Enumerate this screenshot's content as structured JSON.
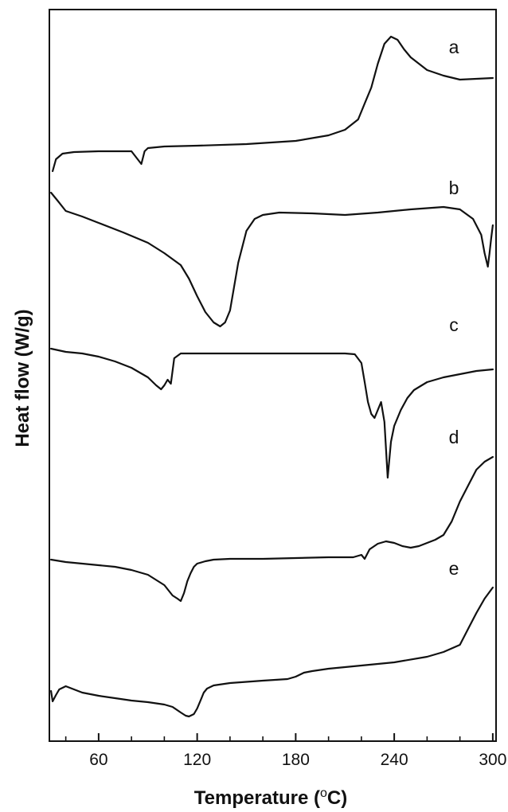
{
  "chart_data": {
    "type": "line",
    "title": "",
    "xlabel": "Temperature (",
    "xlabel_sup": "o",
    "xlabel_unit": "C)",
    "ylabel": "Heat flow (W/g)",
    "xlim": [
      30,
      302
    ],
    "x_ticks": [
      60,
      120,
      180,
      240,
      300
    ],
    "x_minor_ticks": [
      40,
      80,
      100,
      140,
      160,
      200,
      220,
      260,
      280
    ],
    "grid": false,
    "series": [
      {
        "name": "a",
        "x": [
          32,
          34,
          38,
          45,
          60,
          80,
          86,
          88,
          90,
          100,
          120,
          150,
          180,
          200,
          210,
          218,
          222,
          226,
          230,
          234,
          238,
          242,
          246,
          250,
          255,
          260,
          270,
          280,
          290,
          300
        ],
        "y": [
          215,
          200,
          193,
          191,
          190,
          190,
          206,
          190,
          186,
          184,
          183,
          181,
          177,
          170,
          163,
          150,
          130,
          110,
          80,
          55,
          46,
          50,
          62,
          72,
          80,
          88,
          95,
          100,
          99,
          98
        ]
      },
      {
        "name": "b",
        "x": [
          31,
          35,
          40,
          50,
          60,
          75,
          90,
          100,
          110,
          115,
          120,
          125,
          130,
          134,
          137,
          140,
          145,
          150,
          155,
          160,
          170,
          190,
          210,
          230,
          250,
          270,
          280,
          288,
          293,
          295,
          297,
          298,
          299,
          300
        ],
        "y": [
          242,
          252,
          265,
          272,
          280,
          292,
          305,
          318,
          333,
          350,
          372,
          392,
          405,
          410,
          405,
          390,
          330,
          290,
          275,
          270,
          267,
          268,
          270,
          267,
          263,
          260,
          263,
          275,
          295,
          318,
          335,
          318,
          300,
          283
        ]
      },
      {
        "name": "c",
        "x": [
          31,
          40,
          50,
          60,
          70,
          80,
          90,
          95,
          98,
          100,
          102,
          104,
          106,
          110,
          130,
          160,
          190,
          210,
          216,
          220,
          222,
          224,
          226,
          228,
          230,
          232,
          234,
          236,
          238,
          240,
          244,
          248,
          252,
          256,
          260,
          270,
          280,
          290,
          300
        ],
        "y": [
          438,
          442,
          444,
          448,
          454,
          462,
          474,
          484,
          489,
          484,
          477,
          482,
          450,
          444,
          444,
          444,
          444,
          444,
          445,
          456,
          480,
          505,
          520,
          525,
          515,
          505,
          530,
          600,
          555,
          535,
          515,
          500,
          490,
          485,
          480,
          474,
          470,
          466,
          464
        ]
      },
      {
        "name": "d",
        "x": [
          31,
          40,
          50,
          60,
          70,
          80,
          90,
          100,
          105,
          108,
          110,
          112,
          114,
          116,
          118,
          120,
          125,
          130,
          140,
          160,
          180,
          200,
          215,
          220,
          222,
          225,
          230,
          235,
          240,
          245,
          250,
          255,
          260,
          265,
          270,
          275,
          280,
          285,
          290,
          295,
          300
        ],
        "y": [
          703,
          706,
          708,
          710,
          712,
          716,
          722,
          735,
          748,
          752,
          755,
          745,
          730,
          720,
          712,
          708,
          705,
          703,
          702,
          702,
          701,
          700,
          700,
          697,
          702,
          690,
          683,
          680,
          682,
          686,
          688,
          686,
          682,
          678,
          672,
          655,
          630,
          610,
          590,
          580,
          574
        ]
      },
      {
        "name": "e",
        "x": [
          31,
          32,
          34,
          36,
          40,
          50,
          60,
          70,
          80,
          90,
          100,
          105,
          110,
          113,
          115,
          118,
          120,
          122,
          124,
          126,
          128,
          130,
          140,
          160,
          175,
          180,
          185,
          190,
          200,
          220,
          240,
          260,
          270,
          280,
          285,
          290,
          295,
          300
        ],
        "y": [
          868,
          881,
          873,
          866,
          862,
          870,
          874,
          877,
          880,
          882,
          885,
          888,
          895,
          899,
          900,
          897,
          890,
          880,
          870,
          865,
          863,
          861,
          858,
          855,
          853,
          850,
          845,
          843,
          840,
          836,
          832,
          825,
          819,
          810,
          790,
          770,
          752,
          738
        ]
      }
    ]
  }
}
